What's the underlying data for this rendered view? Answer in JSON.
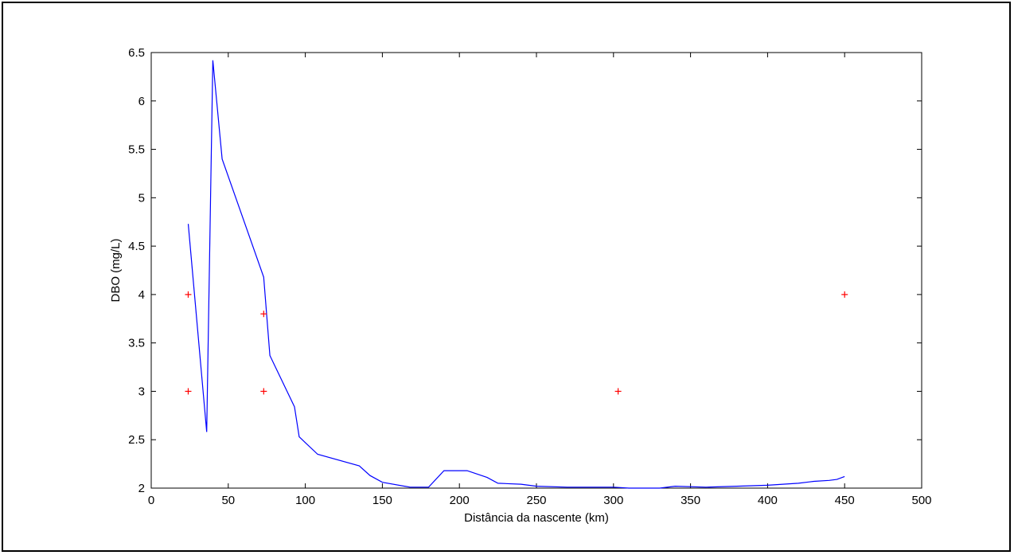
{
  "chart_data": {
    "type": "line",
    "title": "",
    "xlabel": "Distância da nascente (km)",
    "ylabel": "DBO (mg/L)",
    "xlim": [
      0,
      500
    ],
    "ylim": [
      2,
      6.5
    ],
    "x_ticks": [
      0,
      50,
      100,
      150,
      200,
      250,
      300,
      350,
      400,
      450,
      500
    ],
    "x_tick_labels": [
      "0",
      "50",
      "100",
      "150",
      "200",
      "250",
      "300",
      "350",
      "400",
      "450",
      "500"
    ],
    "y_ticks": [
      2,
      2.5,
      3,
      3.5,
      4,
      4.5,
      5,
      5.5,
      6,
      6.5
    ],
    "y_tick_labels": [
      "2",
      "2.5",
      "3",
      "3.5",
      "4",
      "4.5",
      "5",
      "5.5",
      "6",
      "6.5"
    ],
    "grid": false,
    "series": [
      {
        "style": "line",
        "color": "#0000ff",
        "x": [
          24,
          36,
          40,
          46,
          73,
          77,
          93,
          96,
          108,
          135,
          142,
          150,
          168,
          180,
          190,
          205,
          218,
          225,
          240,
          250,
          270,
          300,
          310,
          330,
          340,
          360,
          380,
          400,
          410,
          420,
          430,
          440,
          445,
          450
        ],
        "y": [
          4.73,
          2.58,
          6.42,
          5.4,
          4.18,
          3.37,
          2.84,
          2.53,
          2.35,
          2.23,
          2.13,
          2.06,
          2.01,
          2.01,
          2.18,
          2.18,
          2.11,
          2.05,
          2.04,
          2.02,
          2.01,
          2.01,
          2.0,
          2.0,
          2.02,
          2.01,
          2.02,
          2.03,
          2.04,
          2.05,
          2.07,
          2.08,
          2.09,
          2.12
        ]
      },
      {
        "style": "markers",
        "marker": "+",
        "color": "#ff0000",
        "x": [
          24,
          24,
          73,
          73,
          303,
          450
        ],
        "y": [
          4.0,
          3.0,
          3.8,
          3.0,
          3.0,
          4.0
        ]
      }
    ]
  }
}
